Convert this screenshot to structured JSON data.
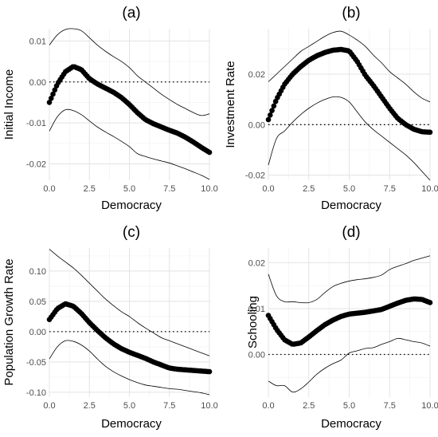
{
  "chart_data": [
    {
      "type": "line",
      "title": "(a)",
      "xlabel": "Democracy",
      "ylabel": "Initial Income",
      "xlim": [
        0,
        10
      ],
      "ylim": [
        -0.024,
        0.013
      ],
      "xticks": [
        0,
        2.5,
        5,
        7.5,
        10
      ],
      "xtick_labels": [
        "0.0",
        "2.5",
        "5.0",
        "7.5",
        "10.0"
      ],
      "yticks": [
        -0.02,
        -0.01,
        0,
        0.01
      ],
      "ytick_labels": [
        "-0.02",
        "-0.01",
        "0.00",
        "0.01"
      ],
      "grid": true,
      "reference_line": {
        "y": 0,
        "style": "dotted"
      },
      "series": [
        {
          "role": "estimate",
          "style": "points",
          "x": [
            0,
            0.5,
            1,
            1.5,
            2,
            2.5,
            3,
            3.5,
            4,
            4.5,
            5,
            5.5,
            6,
            6.5,
            7,
            7.5,
            8,
            8.5,
            9,
            9.5,
            10
          ],
          "y": [
            -0.005,
            -0.0005,
            0.0025,
            0.0038,
            0.003,
            0.0008,
            -0.0005,
            -0.0015,
            -0.0025,
            -0.0038,
            -0.0055,
            -0.0075,
            -0.0092,
            -0.0102,
            -0.011,
            -0.0118,
            -0.0125,
            -0.0135,
            -0.0147,
            -0.016,
            -0.0172
          ]
        },
        {
          "role": "upper",
          "style": "line",
          "x": [
            0,
            0.5,
            1,
            1.5,
            2,
            2.5,
            3,
            3.5,
            4,
            4.5,
            5,
            5.5,
            6,
            6.5,
            7,
            7.5,
            8,
            8.5,
            9,
            9.5,
            10
          ],
          "y": [
            0.009,
            0.0115,
            0.0128,
            0.013,
            0.0125,
            0.0108,
            0.009,
            0.0075,
            0.0062,
            0.005,
            0.0035,
            0.0015,
            0.0,
            -0.0015,
            -0.003,
            -0.0043,
            -0.0055,
            -0.0065,
            -0.0075,
            -0.0082,
            -0.0078
          ]
        },
        {
          "role": "lower",
          "style": "line",
          "x": [
            0,
            0.5,
            1,
            1.5,
            2,
            2.5,
            3,
            3.5,
            4,
            4.5,
            5,
            5.5,
            6,
            6.5,
            7,
            7.5,
            8,
            8.5,
            9,
            9.5,
            10
          ],
          "y": [
            -0.012,
            -0.0085,
            -0.0068,
            -0.007,
            -0.008,
            -0.0095,
            -0.011,
            -0.0122,
            -0.0133,
            -0.0145,
            -0.0158,
            -0.0175,
            -0.0182,
            -0.0188,
            -0.0193,
            -0.0198,
            -0.0205,
            -0.0212,
            -0.022,
            -0.0228,
            -0.0238
          ]
        }
      ]
    },
    {
      "type": "line",
      "title": "(b)",
      "xlabel": "Democracy",
      "ylabel": "Investment Rate",
      "xlim": [
        0,
        10
      ],
      "ylim": [
        -0.022,
        0.038
      ],
      "xticks": [
        0,
        2.5,
        5,
        7.5,
        10
      ],
      "xtick_labels": [
        "0.0",
        "2.5",
        "5.0",
        "7.5",
        "10.0"
      ],
      "yticks": [
        -0.02,
        0,
        0.02
      ],
      "ytick_labels": [
        "-0.02",
        "0.00",
        "0.02"
      ],
      "grid": true,
      "reference_line": {
        "y": 0,
        "style": "dotted"
      },
      "series": [
        {
          "role": "estimate",
          "style": "points",
          "x": [
            0,
            0.5,
            1,
            1.5,
            2,
            2.5,
            3,
            3.5,
            4,
            4.5,
            5,
            5.5,
            6,
            6.5,
            7,
            7.5,
            8,
            8.5,
            9,
            9.5,
            10
          ],
          "y": [
            0.002,
            0.01,
            0.016,
            0.02,
            0.023,
            0.0255,
            0.0273,
            0.0286,
            0.0295,
            0.0298,
            0.0292,
            0.025,
            0.0195,
            0.0155,
            0.011,
            0.0065,
            0.0025,
            0.0,
            -0.0018,
            -0.0028,
            -0.003
          ]
        },
        {
          "role": "upper",
          "style": "line",
          "x": [
            0,
            0.5,
            1,
            1.5,
            2,
            2.5,
            3,
            3.5,
            4,
            4.5,
            5,
            5.5,
            6,
            6.5,
            7,
            7.5,
            8,
            8.5,
            9,
            9.5,
            10
          ],
          "y": [
            0.017,
            0.02,
            0.023,
            0.026,
            0.029,
            0.031,
            0.033,
            0.035,
            0.0365,
            0.037,
            0.0355,
            0.0335,
            0.031,
            0.0275,
            0.0245,
            0.021,
            0.0185,
            0.016,
            0.013,
            0.0105,
            0.009
          ]
        },
        {
          "role": "lower",
          "style": "line",
          "x": [
            0,
            0.5,
            1,
            1.5,
            2,
            2.5,
            3,
            3.5,
            4,
            4.5,
            5,
            5.5,
            6,
            6.5,
            7,
            7.5,
            8,
            8.5,
            9,
            9.5,
            10
          ],
          "y": [
            -0.016,
            -0.0055,
            -0.0025,
            0.001,
            0.004,
            0.0065,
            0.0085,
            0.01,
            0.011,
            0.0108,
            0.009,
            0.005,
            0.001,
            -0.002,
            -0.0045,
            -0.007,
            -0.0095,
            -0.012,
            -0.015,
            -0.0185,
            -0.022
          ]
        }
      ]
    },
    {
      "type": "line",
      "title": "(c)",
      "xlabel": "Democracy",
      "ylabel": "Population Growth Rate",
      "xlim": [
        0,
        10
      ],
      "ylim": [
        -0.108,
        0.138
      ],
      "xticks": [
        0,
        2.5,
        5,
        7.5,
        10
      ],
      "xtick_labels": [
        "0.0",
        "2.5",
        "5.0",
        "7.5",
        "10.0"
      ],
      "yticks": [
        -0.1,
        -0.05,
        0,
        0.05,
        0.1
      ],
      "ytick_labels": [
        "-0.10",
        "-0.05",
        "0.00",
        "0.05",
        "0.10"
      ],
      "grid": true,
      "reference_line": {
        "y": 0,
        "style": "dotted"
      },
      "series": [
        {
          "role": "estimate",
          "style": "points",
          "x": [
            0,
            0.5,
            1,
            1.5,
            2,
            2.5,
            3,
            3.5,
            4,
            4.5,
            5,
            5.5,
            6,
            6.5,
            7,
            7.5,
            8,
            8.5,
            9,
            9.5,
            10
          ],
          "y": [
            0.02,
            0.038,
            0.046,
            0.042,
            0.03,
            0.015,
            0.002,
            -0.01,
            -0.02,
            -0.028,
            -0.034,
            -0.039,
            -0.044,
            -0.05,
            -0.055,
            -0.06,
            -0.062,
            -0.063,
            -0.064,
            -0.065,
            -0.066
          ]
        },
        {
          "role": "upper",
          "style": "line",
          "x": [
            0,
            0.5,
            1,
            1.5,
            2,
            2.5,
            3,
            3.5,
            4,
            4.5,
            5,
            5.5,
            6,
            6.5,
            7,
            7.5,
            8,
            8.5,
            9,
            9.5,
            10
          ],
          "y": [
            0.136,
            0.125,
            0.115,
            0.105,
            0.093,
            0.08,
            0.067,
            0.054,
            0.043,
            0.033,
            0.025,
            0.015,
            0.006,
            -0.002,
            -0.01,
            -0.015,
            -0.02,
            -0.025,
            -0.03,
            -0.035,
            -0.04
          ]
        },
        {
          "role": "lower",
          "style": "line",
          "x": [
            0,
            0.5,
            1,
            1.5,
            2,
            2.5,
            3,
            3.5,
            4,
            4.5,
            5,
            5.5,
            6,
            6.5,
            7,
            7.5,
            8,
            8.5,
            9,
            9.5,
            10
          ],
          "y": [
            -0.045,
            -0.025,
            -0.015,
            -0.016,
            -0.022,
            -0.032,
            -0.045,
            -0.057,
            -0.066,
            -0.073,
            -0.079,
            -0.084,
            -0.088,
            -0.09,
            -0.092,
            -0.094,
            -0.095,
            -0.097,
            -0.099,
            -0.101,
            -0.104
          ]
        }
      ]
    },
    {
      "type": "line",
      "title": "(d)",
      "xlabel": "Democracy",
      "ylabel": "Schooling",
      "xlim": [
        0,
        10
      ],
      "ylim": [
        -0.0093,
        0.0232
      ],
      "xticks": [
        0,
        2.5,
        5,
        7.5,
        10
      ],
      "xtick_labels": [
        "0.0",
        "2.5",
        "5.0",
        "7.5",
        "10.0"
      ],
      "yticks": [
        0,
        0.01,
        0.02
      ],
      "ytick_labels": [
        "0.00",
        "0.01",
        "0.02"
      ],
      "grid": true,
      "reference_line": {
        "y": 0,
        "style": "dotted"
      },
      "series": [
        {
          "role": "estimate",
          "style": "points",
          "x": [
            0,
            0.5,
            1,
            1.5,
            2,
            2.5,
            3,
            3.5,
            4,
            4.5,
            5,
            5.5,
            6,
            6.5,
            7,
            7.5,
            8,
            8.5,
            9,
            9.5,
            10
          ],
          "y": [
            0.0085,
            0.0055,
            0.0032,
            0.0022,
            0.0025,
            0.0038,
            0.0052,
            0.0065,
            0.0075,
            0.0083,
            0.0088,
            0.009,
            0.0092,
            0.0095,
            0.0098,
            0.0105,
            0.0112,
            0.0118,
            0.0121,
            0.012,
            0.0113
          ]
        },
        {
          "role": "upper",
          "style": "line",
          "x": [
            0,
            0.5,
            1,
            1.5,
            2,
            2.5,
            3,
            3.5,
            4,
            4.5,
            5,
            5.5,
            6,
            6.5,
            7,
            7.5,
            8,
            8.5,
            9,
            9.5,
            10
          ],
          "y": [
            0.0175,
            0.0128,
            0.0115,
            0.0115,
            0.0113,
            0.0113,
            0.012,
            0.0135,
            0.0148,
            0.0155,
            0.016,
            0.0163,
            0.0165,
            0.0168,
            0.0173,
            0.0185,
            0.0192,
            0.0198,
            0.0205,
            0.021,
            0.0215
          ]
        },
        {
          "role": "lower",
          "style": "line",
          "x": [
            0,
            0.5,
            1,
            1.5,
            2,
            2.5,
            3,
            3.5,
            4,
            4.5,
            5,
            5.5,
            6,
            6.5,
            7,
            7.5,
            8,
            8.5,
            9,
            9.5,
            10
          ],
          "y": [
            -0.0058,
            -0.0068,
            -0.0068,
            -0.0082,
            -0.0075,
            -0.006,
            -0.0043,
            -0.003,
            -0.002,
            -0.0012,
            0.0003,
            0.0008,
            0.0013,
            0.0015,
            0.0022,
            0.0028,
            0.0035,
            0.0032,
            0.0028,
            0.0025,
            0.0018
          ]
        }
      ]
    }
  ]
}
